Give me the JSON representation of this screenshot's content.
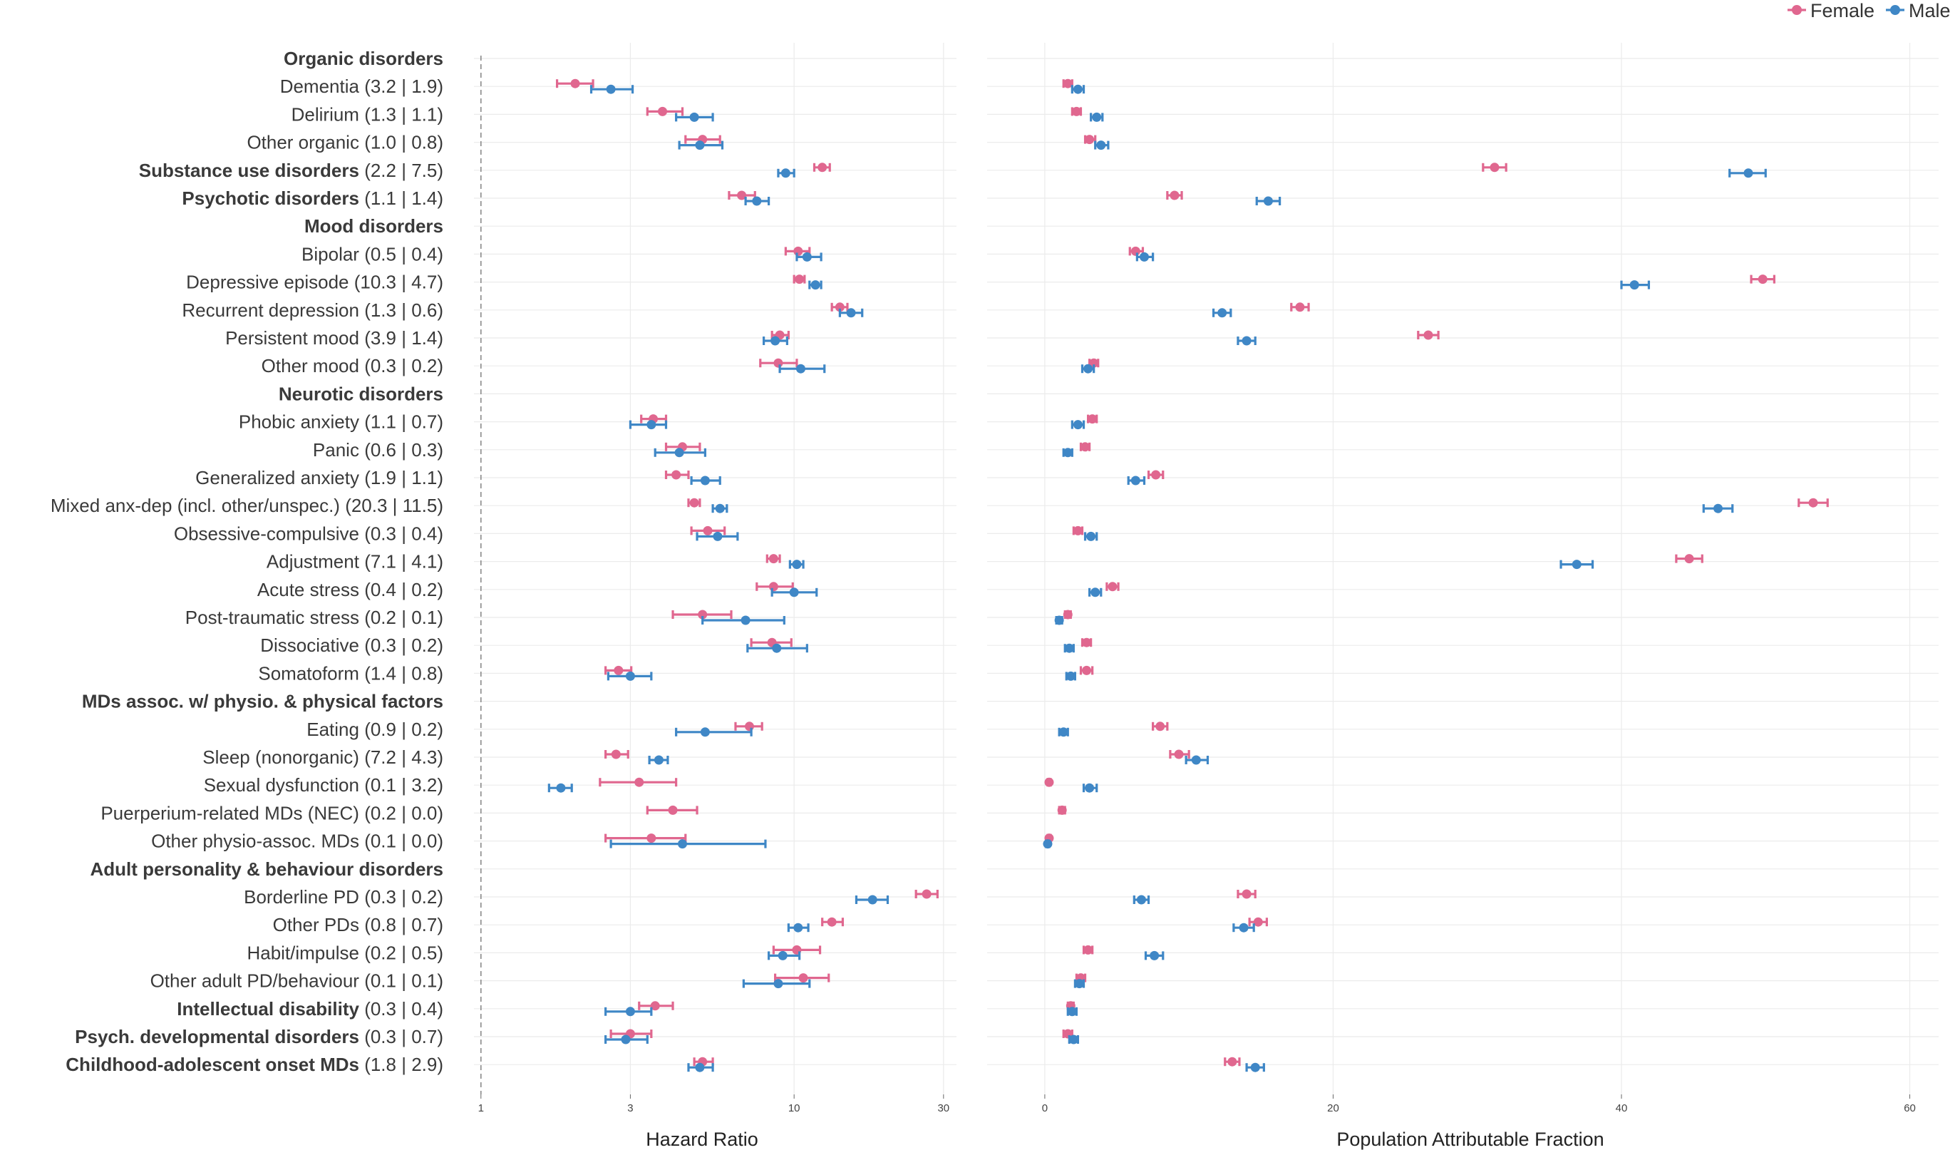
{
  "legend": {
    "items": [
      {
        "name": "Female",
        "color": "#e0678f"
      },
      {
        "name": "Male",
        "color": "#3f87c6"
      }
    ]
  },
  "panels": {
    "left_title": "Hazard Ratio",
    "right_title": "Population Attributable Fraction"
  },
  "rows": [
    {
      "name": "Organic disorders",
      "suffix": "",
      "bold": true,
      "female": null,
      "male": null
    },
    {
      "name": "Dementia",
      "suffix": "(3.2 | 1.9)",
      "bold": false,
      "female": {
        "hr": 2.0,
        "hr_lo": 1.75,
        "hr_hi": 2.28,
        "paf": 1.6,
        "paf_lo": 1.3,
        "paf_hi": 1.9
      },
      "male": {
        "hr": 2.6,
        "hr_lo": 2.25,
        "hr_hi": 3.05,
        "paf": 2.3,
        "paf_lo": 1.9,
        "paf_hi": 2.7
      }
    },
    {
      "name": "Delirium",
      "suffix": "(1.3 | 1.1)",
      "bold": false,
      "female": {
        "hr": 3.8,
        "hr_lo": 3.4,
        "hr_hi": 4.4,
        "paf": 2.2,
        "paf_lo": 1.9,
        "paf_hi": 2.5
      },
      "male": {
        "hr": 4.8,
        "hr_lo": 4.2,
        "hr_hi": 5.5,
        "paf": 3.6,
        "paf_lo": 3.2,
        "paf_hi": 4.0
      }
    },
    {
      "name": "Other organic",
      "suffix": "(1.0 | 0.8)",
      "bold": false,
      "female": {
        "hr": 5.1,
        "hr_lo": 4.5,
        "hr_hi": 5.8,
        "paf": 3.1,
        "paf_lo": 2.8,
        "paf_hi": 3.5
      },
      "male": {
        "hr": 5.0,
        "hr_lo": 4.3,
        "hr_hi": 5.9,
        "paf": 3.9,
        "paf_lo": 3.5,
        "paf_hi": 4.4
      }
    },
    {
      "name": "Substance use disorders",
      "suffix": "(2.2 | 7.5)",
      "bold": true,
      "female": {
        "hr": 12.3,
        "hr_lo": 11.6,
        "hr_hi": 13.0,
        "paf": 31.2,
        "paf_lo": 30.4,
        "paf_hi": 32.0
      },
      "male": {
        "hr": 9.4,
        "hr_lo": 8.9,
        "hr_hi": 10.0,
        "paf": 48.8,
        "paf_lo": 47.5,
        "paf_hi": 50.0
      }
    },
    {
      "name": "Psychotic disorders",
      "suffix": "(1.1 | 1.4)",
      "bold": true,
      "female": {
        "hr": 6.8,
        "hr_lo": 6.2,
        "hr_hi": 7.5,
        "paf": 9.0,
        "paf_lo": 8.5,
        "paf_hi": 9.5
      },
      "male": {
        "hr": 7.6,
        "hr_lo": 7.0,
        "hr_hi": 8.3,
        "paf": 15.5,
        "paf_lo": 14.7,
        "paf_hi": 16.3
      }
    },
    {
      "name": "Mood disorders",
      "suffix": "",
      "bold": true,
      "female": null,
      "male": null
    },
    {
      "name": "Bipolar",
      "suffix": "(0.5 | 0.4)",
      "bold": false,
      "female": {
        "hr": 10.3,
        "hr_lo": 9.4,
        "hr_hi": 11.2,
        "paf": 6.3,
        "paf_lo": 5.9,
        "paf_hi": 6.8
      },
      "male": {
        "hr": 11.0,
        "hr_lo": 10.2,
        "hr_hi": 12.2,
        "paf": 6.9,
        "paf_lo": 6.4,
        "paf_hi": 7.5
      }
    },
    {
      "name": "Depressive episode",
      "suffix": "(10.3 | 4.7)",
      "bold": false,
      "female": {
        "hr": 10.4,
        "hr_lo": 10.0,
        "hr_hi": 10.8,
        "paf": 49.8,
        "paf_lo": 49.0,
        "paf_hi": 50.6
      },
      "male": {
        "hr": 11.7,
        "hr_lo": 11.2,
        "hr_hi": 12.2,
        "paf": 40.9,
        "paf_lo": 40.0,
        "paf_hi": 41.9
      }
    },
    {
      "name": "Recurrent depression",
      "suffix": "(1.3 | 0.6)",
      "bold": false,
      "female": {
        "hr": 14.0,
        "hr_lo": 13.2,
        "hr_hi": 14.8,
        "paf": 17.7,
        "paf_lo": 17.1,
        "paf_hi": 18.3
      },
      "male": {
        "hr": 15.2,
        "hr_lo": 14.0,
        "hr_hi": 16.5,
        "paf": 12.3,
        "paf_lo": 11.7,
        "paf_hi": 12.9
      }
    },
    {
      "name": "Persistent mood",
      "suffix": "(3.9 | 1.4)",
      "bold": false,
      "female": {
        "hr": 9.0,
        "hr_lo": 8.5,
        "hr_hi": 9.6,
        "paf": 26.6,
        "paf_lo": 25.9,
        "paf_hi": 27.3
      },
      "male": {
        "hr": 8.7,
        "hr_lo": 8.0,
        "hr_hi": 9.5,
        "paf": 14.0,
        "paf_lo": 13.4,
        "paf_hi": 14.6
      }
    },
    {
      "name": "Other mood",
      "suffix": "(0.3 | 0.2)",
      "bold": false,
      "female": {
        "hr": 8.9,
        "hr_lo": 7.8,
        "hr_hi": 10.2,
        "paf": 3.4,
        "paf_lo": 3.1,
        "paf_hi": 3.7
      },
      "male": {
        "hr": 10.5,
        "hr_lo": 9.0,
        "hr_hi": 12.5,
        "paf": 3.0,
        "paf_lo": 2.6,
        "paf_hi": 3.4
      }
    },
    {
      "name": "Neurotic disorders",
      "suffix": "",
      "bold": true,
      "female": null,
      "male": null
    },
    {
      "name": "Phobic anxiety",
      "suffix": "(1.1 | 0.7)",
      "bold": false,
      "female": {
        "hr": 3.55,
        "hr_lo": 3.25,
        "hr_hi": 3.9,
        "paf": 3.3,
        "paf_lo": 3.0,
        "paf_hi": 3.6
      },
      "male": {
        "hr": 3.5,
        "hr_lo": 3.0,
        "hr_hi": 3.9,
        "paf": 2.3,
        "paf_lo": 1.9,
        "paf_hi": 2.7
      }
    },
    {
      "name": "Panic",
      "suffix": "(0.6 | 0.3)",
      "bold": false,
      "female": {
        "hr": 4.4,
        "hr_lo": 3.9,
        "hr_hi": 5.0,
        "paf": 2.8,
        "paf_lo": 2.5,
        "paf_hi": 3.1
      },
      "male": {
        "hr": 4.3,
        "hr_lo": 3.6,
        "hr_hi": 5.2,
        "paf": 1.6,
        "paf_lo": 1.3,
        "paf_hi": 1.9
      }
    },
    {
      "name": "Generalized anxiety",
      "suffix": "(1.9 | 1.1)",
      "bold": false,
      "female": {
        "hr": 4.2,
        "hr_lo": 3.9,
        "hr_hi": 4.6,
        "paf": 7.7,
        "paf_lo": 7.2,
        "paf_hi": 8.2
      },
      "male": {
        "hr": 5.2,
        "hr_lo": 4.7,
        "hr_hi": 5.8,
        "paf": 6.3,
        "paf_lo": 5.8,
        "paf_hi": 6.9
      }
    },
    {
      "name": "Mixed anx-dep  (incl. other/unspec.)",
      "suffix": "(20.3 | 11.5)",
      "bold": false,
      "female": {
        "hr": 4.8,
        "hr_lo": 4.6,
        "hr_hi": 5.0,
        "paf": 53.3,
        "paf_lo": 52.3,
        "paf_hi": 54.3
      },
      "male": {
        "hr": 5.8,
        "hr_lo": 5.5,
        "hr_hi": 6.1,
        "paf": 46.7,
        "paf_lo": 45.7,
        "paf_hi": 47.7
      }
    },
    {
      "name": "Obsessive-compulsive ",
      "suffix": "(0.3 | 0.4)",
      "bold": false,
      "female": {
        "hr": 5.3,
        "hr_lo": 4.7,
        "hr_hi": 6.0,
        "paf": 2.3,
        "paf_lo": 2.0,
        "paf_hi": 2.6
      },
      "male": {
        "hr": 5.7,
        "hr_lo": 4.9,
        "hr_hi": 6.6,
        "paf": 3.2,
        "paf_lo": 2.8,
        "paf_hi": 3.6
      }
    },
    {
      "name": "Adjustment",
      "suffix": "(7.1 | 4.1)",
      "bold": false,
      "female": {
        "hr": 8.6,
        "hr_lo": 8.2,
        "hr_hi": 9.0,
        "paf": 44.7,
        "paf_lo": 43.8,
        "paf_hi": 45.6
      },
      "male": {
        "hr": 10.2,
        "hr_lo": 9.7,
        "hr_hi": 10.7,
        "paf": 36.9,
        "paf_lo": 35.8,
        "paf_hi": 38.0
      }
    },
    {
      "name": "Acute stress",
      "suffix": "(0.4 | 0.2)",
      "bold": false,
      "female": {
        "hr": 8.6,
        "hr_lo": 7.6,
        "hr_hi": 9.9,
        "paf": 4.7,
        "paf_lo": 4.3,
        "paf_hi": 5.1
      },
      "male": {
        "hr": 10.0,
        "hr_lo": 8.5,
        "hr_hi": 11.8,
        "paf": 3.5,
        "paf_lo": 3.1,
        "paf_hi": 3.9
      }
    },
    {
      "name": "Post-traumatic  stress",
      "suffix": "(0.2 | 0.1)",
      "bold": false,
      "female": {
        "hr": 5.1,
        "hr_lo": 4.1,
        "hr_hi": 6.3,
        "paf": 1.6,
        "paf_lo": 1.4,
        "paf_hi": 1.8
      },
      "male": {
        "hr": 7.0,
        "hr_lo": 5.1,
        "hr_hi": 9.3,
        "paf": 1.0,
        "paf_lo": 0.8,
        "paf_hi": 1.2
      }
    },
    {
      "name": "Dissociative",
      "suffix": "(0.3 | 0.2)",
      "bold": false,
      "female": {
        "hr": 8.5,
        "hr_lo": 7.3,
        "hr_hi": 9.8,
        "paf": 2.9,
        "paf_lo": 2.6,
        "paf_hi": 3.2
      },
      "male": {
        "hr": 8.8,
        "hr_lo": 7.1,
        "hr_hi": 11.0,
        "paf": 1.7,
        "paf_lo": 1.4,
        "paf_hi": 2.0
      }
    },
    {
      "name": "Somatoform",
      "suffix": "(1.4 | 0.8)",
      "bold": false,
      "female": {
        "hr": 2.75,
        "hr_lo": 2.5,
        "hr_hi": 3.02,
        "paf": 2.9,
        "paf_lo": 2.5,
        "paf_hi": 3.3
      },
      "male": {
        "hr": 3.0,
        "hr_lo": 2.55,
        "hr_hi": 3.5,
        "paf": 1.8,
        "paf_lo": 1.5,
        "paf_hi": 2.1
      }
    },
    {
      "name": "MDs assoc. w/ physio. & physical factors",
      "suffix": "",
      "bold": true,
      "female": null,
      "male": null
    },
    {
      "name": "Eating",
      "suffix": "(0.9 | 0.2)",
      "bold": false,
      "female": {
        "hr": 7.2,
        "hr_lo": 6.5,
        "hr_hi": 7.9,
        "paf": 8.0,
        "paf_lo": 7.5,
        "paf_hi": 8.5
      },
      "male": {
        "hr": 5.2,
        "hr_lo": 4.2,
        "hr_hi": 7.3,
        "paf": 1.3,
        "paf_lo": 1.0,
        "paf_hi": 1.6
      }
    },
    {
      "name": "Sleep (nonorganic)",
      "suffix": "(7.2 | 4.3)",
      "bold": false,
      "female": {
        "hr": 2.7,
        "hr_lo": 2.5,
        "hr_hi": 2.95,
        "paf": 9.3,
        "paf_lo": 8.7,
        "paf_hi": 10.0
      },
      "male": {
        "hr": 3.7,
        "hr_lo": 3.45,
        "hr_hi": 3.95,
        "paf": 10.5,
        "paf_lo": 9.8,
        "paf_hi": 11.3
      }
    },
    {
      "name": "Sexual dysfunction",
      "suffix": "(0.1 | 3.2)",
      "bold": false,
      "female": {
        "hr": 3.2,
        "hr_lo": 2.4,
        "hr_hi": 4.2,
        "paf": 0.3,
        "paf_lo": 0.2,
        "paf_hi": 0.4
      },
      "male": {
        "hr": 1.8,
        "hr_lo": 1.65,
        "hr_hi": 1.95,
        "paf": 3.1,
        "paf_lo": 2.7,
        "paf_hi": 3.6
      }
    },
    {
      "name": "Puerperium-related  MDs (NEC)",
      "suffix": "(0.2 | 0.0)",
      "bold": false,
      "female": {
        "hr": 4.1,
        "hr_lo": 3.4,
        "hr_hi": 4.9,
        "paf": 1.2,
        "paf_lo": 1.0,
        "paf_hi": 1.4
      },
      "male": null
    },
    {
      "name": "Other physio-assoc.  MDs",
      "suffix": "(0.1 | 0.0)",
      "bold": false,
      "female": {
        "hr": 3.5,
        "hr_lo": 2.5,
        "hr_hi": 4.5,
        "paf": 0.3,
        "paf_lo": 0.2,
        "paf_hi": 0.4
      },
      "male": {
        "hr": 4.4,
        "hr_lo": 2.6,
        "hr_hi": 8.1,
        "paf": 0.2,
        "paf_lo": 0.1,
        "paf_hi": 0.3
      }
    },
    {
      "name": "Adult personality & behaviour disorders",
      "suffix": "",
      "bold": true,
      "female": null,
      "male": null
    },
    {
      "name": "Borderline PD",
      "suffix": "(0.3 | 0.2)",
      "bold": false,
      "female": {
        "hr": 26.5,
        "hr_lo": 24.5,
        "hr_hi": 28.7,
        "paf": 14.0,
        "paf_lo": 13.4,
        "paf_hi": 14.6
      },
      "male": {
        "hr": 17.8,
        "hr_lo": 15.8,
        "hr_hi": 19.9,
        "paf": 6.7,
        "paf_lo": 6.2,
        "paf_hi": 7.2
      }
    },
    {
      "name": "Other PDs",
      "suffix": "(0.8 | 0.7)",
      "bold": false,
      "female": {
        "hr": 13.2,
        "hr_lo": 12.3,
        "hr_hi": 14.3,
        "paf": 14.8,
        "paf_lo": 14.2,
        "paf_hi": 15.4
      },
      "male": {
        "hr": 10.3,
        "hr_lo": 9.6,
        "hr_hi": 11.1,
        "paf": 13.8,
        "paf_lo": 13.1,
        "paf_hi": 14.5
      }
    },
    {
      "name": "Habit/impulse",
      "suffix": "(0.2 | 0.5)",
      "bold": false,
      "female": {
        "hr": 10.2,
        "hr_lo": 8.6,
        "hr_hi": 12.1,
        "paf": 3.0,
        "paf_lo": 2.7,
        "paf_hi": 3.3
      },
      "male": {
        "hr": 9.2,
        "hr_lo": 8.3,
        "hr_hi": 10.4,
        "paf": 7.6,
        "paf_lo": 7.0,
        "paf_hi": 8.2
      }
    },
    {
      "name": "Other adult PD/behaviour",
      "suffix": "(0.1 | 0.1)",
      "bold": false,
      "female": {
        "hr": 10.7,
        "hr_lo": 8.7,
        "hr_hi": 12.9,
        "paf": 2.5,
        "paf_lo": 2.2,
        "paf_hi": 2.8
      },
      "male": {
        "hr": 8.9,
        "hr_lo": 6.9,
        "hr_hi": 11.2,
        "paf": 2.4,
        "paf_lo": 2.1,
        "paf_hi": 2.7
      }
    },
    {
      "name": "Intellectual disability",
      "suffix": "(0.3 | 0.4)",
      "bold": true,
      "female": {
        "hr": 3.6,
        "hr_lo": 3.2,
        "hr_hi": 4.1,
        "paf": 1.8,
        "paf_lo": 1.6,
        "paf_hi": 2.0
      },
      "male": {
        "hr": 3.0,
        "hr_lo": 2.5,
        "hr_hi": 3.5,
        "paf": 1.9,
        "paf_lo": 1.6,
        "paf_hi": 2.2
      }
    },
    {
      "name": "Psych. developmental disorders",
      "suffix": "(0.3 | 0.7)",
      "bold": true,
      "female": {
        "hr": 3.0,
        "hr_lo": 2.6,
        "hr_hi": 3.5,
        "paf": 1.6,
        "paf_lo": 1.3,
        "paf_hi": 1.9
      },
      "male": {
        "hr": 2.9,
        "hr_lo": 2.5,
        "hr_hi": 3.4,
        "paf": 2.0,
        "paf_lo": 1.7,
        "paf_hi": 2.3
      }
    },
    {
      "name": "Childhood-adolescent  onset MDs",
      "suffix": "(1.8 | 2.9)",
      "bold": true,
      "female": {
        "hr": 5.1,
        "hr_lo": 4.8,
        "hr_hi": 5.5,
        "paf": 13.0,
        "paf_lo": 12.5,
        "paf_hi": 13.5
      },
      "male": {
        "hr": 5.0,
        "hr_lo": 4.6,
        "hr_hi": 5.5,
        "paf": 14.6,
        "paf_lo": 14.0,
        "paf_hi": 15.2
      }
    }
  ],
  "chart_data": [
    {
      "type": "scatter",
      "panel": "left",
      "xlabel": "Hazard Ratio",
      "x_scale": "log",
      "xlim": [
        0.95,
        33
      ],
      "x_ticks": [
        1,
        3,
        10,
        30
      ],
      "reference_line": 1,
      "series": [
        "Female",
        "Male"
      ],
      "value_key": "hr"
    },
    {
      "type": "scatter",
      "panel": "right",
      "xlabel": "Population Attributable Fraction",
      "x_scale": "linear",
      "xlim": [
        -4,
        62
      ],
      "x_ticks": [
        0,
        20,
        40,
        60
      ],
      "series": [
        "Female",
        "Male"
      ],
      "value_key": "paf"
    }
  ]
}
